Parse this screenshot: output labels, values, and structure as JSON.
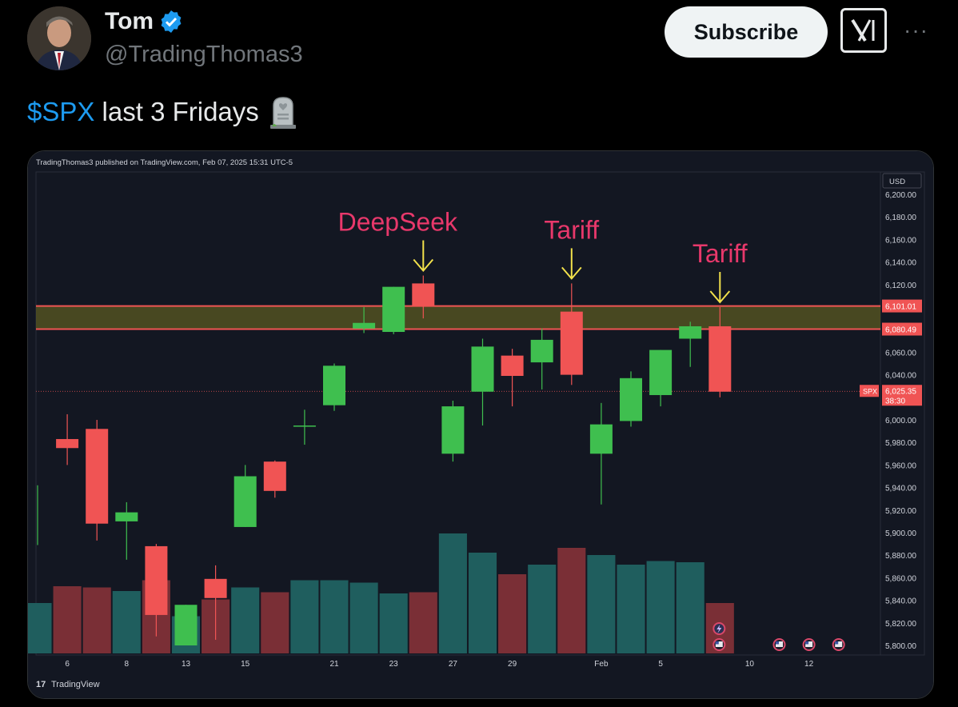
{
  "tweet": {
    "author_name": "Tom",
    "handle": "@TradingThomas3",
    "subscribe_label": "Subscribe",
    "more_label": "···",
    "cashtag": "$SPX",
    "text": " last 3 Fridays",
    "emoji_icon": "headstone-icon"
  },
  "chart_header": "TradingThomas3 published on TradingView.com, Feb 07, 2025 15:31 UTC-5",
  "chart_footer": "TradingView",
  "colors": {
    "up": "#3fbf4f",
    "down": "#f05454",
    "vol_up": "#1f5e5e",
    "vol_down": "#7a2f36",
    "zone": "#5b5a22",
    "accent": "#1d9bf0"
  },
  "chart_data": {
    "type": "candlestick",
    "currency_label": "USD",
    "symbol_label": "SPX",
    "last_price_label": "6,025.35",
    "countdown_label": "38:30",
    "y_range": [
      5795,
      6205
    ],
    "y_ticks": [
      "6,200.00",
      "6,180.00",
      "6,160.00",
      "6,140.00",
      "6,120.00",
      "6,100.00",
      "6,080.00",
      "6,060.00",
      "6,040.00",
      "6,020.00",
      "6,000.00",
      "5,980.00",
      "5,960.00",
      "5,940.00",
      "5,920.00",
      "5,900.00",
      "5,880.00",
      "5,860.00",
      "5,840.00",
      "5,820.00",
      "5,800.00"
    ],
    "x_ticks": [
      {
        "label": "6",
        "index": 1
      },
      {
        "label": "8",
        "index": 3
      },
      {
        "label": "13",
        "index": 5
      },
      {
        "label": "15",
        "index": 7
      },
      {
        "label": "21",
        "index": 10
      },
      {
        "label": "23",
        "index": 12
      },
      {
        "label": "27",
        "index": 14
      },
      {
        "label": "29",
        "index": 16
      },
      {
        "label": "Feb",
        "index": 19
      },
      {
        "label": "5",
        "index": 21
      },
      {
        "label": "10",
        "index": 24
      },
      {
        "label": "12",
        "index": 26
      }
    ],
    "levels": [
      {
        "label": "6,101.01",
        "value": 6101.01,
        "color": "#f05454"
      },
      {
        "label": "6,080.49",
        "value": 6080.49,
        "color": "#f05454"
      }
    ],
    "current_price": 6025.35,
    "candles": [
      {
        "o": 5890,
        "h": 5942,
        "l": 5889,
        "c": 5942
      },
      {
        "o": 5983,
        "h": 6005,
        "l": 5960,
        "c": 5975
      },
      {
        "o": 5992,
        "h": 6000,
        "l": 5893,
        "c": 5908
      },
      {
        "o": 5910,
        "h": 5927,
        "l": 5876,
        "c": 5918
      },
      {
        "o": 5888,
        "h": 5890,
        "l": 5808,
        "c": 5827
      },
      {
        "o": 5800,
        "h": 5836,
        "l": 5800,
        "c": 5836
      },
      {
        "o": 5859,
        "h": 5871,
        "l": 5805,
        "c": 5842
      },
      {
        "o": 5905,
        "h": 5960,
        "l": 5905,
        "c": 5950
      },
      {
        "o": 5963,
        "h": 5964,
        "l": 5931,
        "c": 5937
      },
      {
        "o": 5995,
        "h": 6009,
        "l": 5978,
        "c": 5995
      },
      {
        "o": 6013,
        "h": 6050,
        "l": 6008,
        "c": 6048
      },
      {
        "o": 6081,
        "h": 6100,
        "l": 6077,
        "c": 6086
      },
      {
        "o": 6078,
        "h": 6118,
        "l": 6076,
        "c": 6118
      },
      {
        "o": 6121,
        "h": 6128,
        "l": 6090,
        "c": 6101
      },
      {
        "o": 5970,
        "h": 6017,
        "l": 5963,
        "c": 6012
      },
      {
        "o": 6025,
        "h": 6072,
        "l": 5995,
        "c": 6065
      },
      {
        "o": 6057,
        "h": 6063,
        "l": 6012,
        "c": 6039
      },
      {
        "o": 6051,
        "h": 6081,
        "l": 6027,
        "c": 6071
      },
      {
        "o": 6096,
        "h": 6121,
        "l": 6031,
        "c": 6040
      },
      {
        "o": 5970,
        "h": 6015,
        "l": 5925,
        "c": 5996
      },
      {
        "o": 5999,
        "h": 6043,
        "l": 5994,
        "c": 6037
      },
      {
        "o": 6022,
        "h": 6062,
        "l": 6012,
        "c": 6062
      },
      {
        "o": 6072,
        "h": 6087,
        "l": 6047,
        "c": 6083
      },
      {
        "o": 6083,
        "h": 6100,
        "l": 6020,
        "c": 6025
      }
    ],
    "volumes": [
      0.42,
      0.56,
      0.55,
      0.52,
      0.61,
      0.31,
      0.45,
      0.55,
      0.51,
      0.61,
      0.61,
      0.59,
      0.5,
      0.51,
      1.0,
      0.84,
      0.66,
      0.74,
      0.88,
      0.82,
      0.74,
      0.77,
      0.76,
      0.42
    ],
    "annotations": [
      {
        "label": "DeepSeek",
        "candle": 13,
        "color": "#e8386b"
      },
      {
        "label": "Tariff",
        "candle": 18,
        "color": "#e8386b"
      },
      {
        "label": "Tariff",
        "candle": 23,
        "color": "#e8386b"
      }
    ]
  }
}
